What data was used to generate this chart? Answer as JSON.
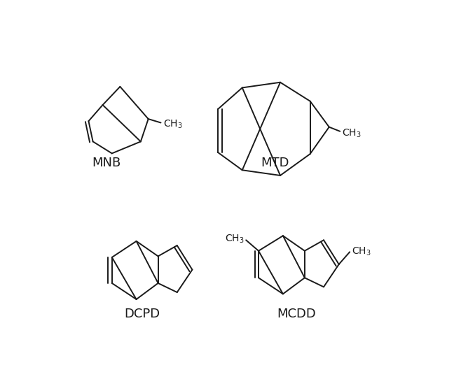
{
  "background_color": "#ffffff",
  "line_color": "#1a1a1a",
  "line_width": 1.4,
  "font_size_label": 13,
  "font_size_ch3": 10,
  "labels": [
    "MNB",
    "MTD",
    "DCPD",
    "MCDD"
  ],
  "figsize": [
    6.58,
    5.32
  ],
  "dpi": 100
}
